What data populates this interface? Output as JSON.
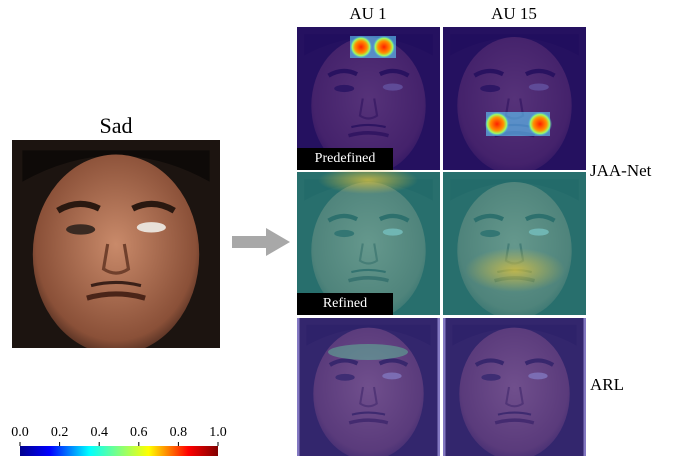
{
  "input": {
    "label": "Sad"
  },
  "columns": [
    "AU 1",
    "AU 15"
  ],
  "tile_tags": [
    "Predefined",
    "Refined"
  ],
  "methods": [
    "JAA-Net",
    "ARL"
  ],
  "colorbar": {
    "ticks": [
      "0.0",
      "0.2",
      "0.4",
      "0.6",
      "0.8",
      "1.0"
    ]
  }
}
